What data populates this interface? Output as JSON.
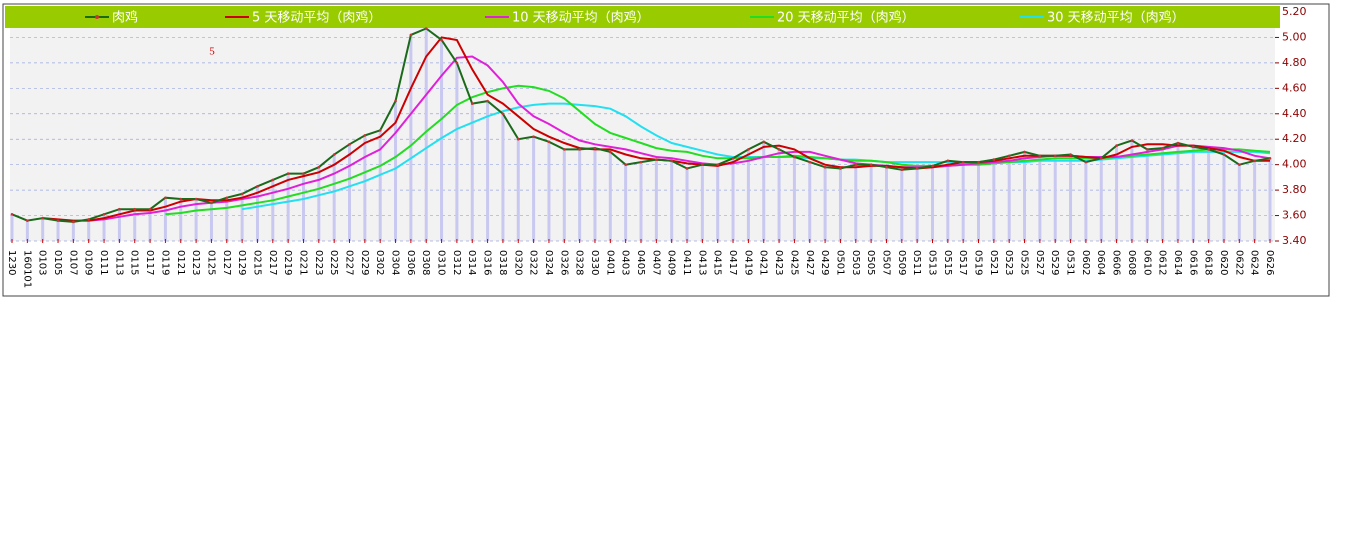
{
  "chart_data": {
    "type": "line",
    "annotation": "5",
    "categories": [
      "1230",
      "160101",
      "0103",
      "0105",
      "0107",
      "0109",
      "0111",
      "0113",
      "0115",
      "0117",
      "0119",
      "0121",
      "0123",
      "0125",
      "0127",
      "0129",
      "0215",
      "0217",
      "0219",
      "0221",
      "0223",
      "0225",
      "0227",
      "0229",
      "0302",
      "0304",
      "0306",
      "0308",
      "0310",
      "0312",
      "0314",
      "0316",
      "0318",
      "0320",
      "0322",
      "0324",
      "0326",
      "0328",
      "0330",
      "0401",
      "0403",
      "0405",
      "0407",
      "0409",
      "0411",
      "0413",
      "0415",
      "0417",
      "0419",
      "0421",
      "0423",
      "0425",
      "0427",
      "0429",
      "0501",
      "0503",
      "0505",
      "0507",
      "0509",
      "0511",
      "0513",
      "0515",
      "0517",
      "0519",
      "0521",
      "0523",
      "0525",
      "0527",
      "0529",
      "0531",
      "0602",
      "0604",
      "0606",
      "0608",
      "0610",
      "0612",
      "0614",
      "0616",
      "0618",
      "0620",
      "0622",
      "0624",
      "0626"
    ],
    "bar_color": "#c8c8f0",
    "series": [
      {
        "name": "肉鸡",
        "color": "#1a6a1a",
        "values": [
          3.61,
          3.56,
          3.58,
          3.56,
          3.55,
          3.57,
          3.61,
          3.65,
          3.65,
          3.65,
          3.74,
          3.73,
          3.73,
          3.7,
          3.74,
          3.77,
          3.83,
          3.88,
          3.93,
          3.93,
          3.98,
          4.08,
          4.16,
          4.23,
          4.27,
          4.5,
          5.02,
          5.07,
          4.98,
          4.8,
          4.48,
          4.5,
          4.4,
          4.2,
          4.22,
          4.18,
          4.12,
          4.12,
          4.13,
          4.1,
          4.0,
          4.02,
          4.04,
          4.03,
          3.97,
          4.0,
          4.0,
          4.05,
          4.12,
          4.18,
          4.12,
          4.06,
          4.02,
          3.98,
          3.97,
          4.0,
          4.0,
          3.98,
          3.96,
          3.97,
          3.99,
          4.03,
          4.02,
          4.02,
          4.04,
          4.07,
          4.1,
          4.07,
          4.07,
          4.08,
          4.02,
          4.05,
          4.15,
          4.19,
          4.12,
          4.13,
          4.17,
          4.14,
          4.12,
          4.08,
          4.0,
          4.03,
          4.05
        ]
      },
      {
        "name": "5 天移动平均（肉鸡）",
        "color": "#cc0000",
        "values": [
          null,
          null,
          3.58,
          3.57,
          3.56,
          3.56,
          3.58,
          3.61,
          3.64,
          3.64,
          3.67,
          3.71,
          3.73,
          3.72,
          3.72,
          3.74,
          3.78,
          3.83,
          3.88,
          3.91,
          3.94,
          4.0,
          4.08,
          4.17,
          4.22,
          4.33,
          4.6,
          4.85,
          5.0,
          4.98,
          4.75,
          4.55,
          4.48,
          4.38,
          4.28,
          4.22,
          4.17,
          4.13,
          4.12,
          4.12,
          4.08,
          4.05,
          4.04,
          4.03,
          4.01,
          4.0,
          3.99,
          4.02,
          4.08,
          4.14,
          4.15,
          4.12,
          4.05,
          4.0,
          3.98,
          3.98,
          3.99,
          3.99,
          3.98,
          3.97,
          3.98,
          4.0,
          4.02,
          4.02,
          4.03,
          4.05,
          4.07,
          4.07,
          4.07,
          4.07,
          4.06,
          4.05,
          4.08,
          4.14,
          4.16,
          4.16,
          4.15,
          4.15,
          4.13,
          4.11,
          4.06,
          4.03,
          4.03
        ]
      },
      {
        "name": "10 天移动平均（肉鸡）",
        "color": "#e020d8",
        "values": [
          null,
          null,
          null,
          null,
          null,
          3.56,
          3.57,
          3.59,
          3.61,
          3.62,
          3.64,
          3.67,
          3.69,
          3.7,
          3.71,
          3.73,
          3.75,
          3.78,
          3.81,
          3.85,
          3.88,
          3.93,
          3.99,
          4.06,
          4.12,
          4.25,
          4.4,
          4.55,
          4.7,
          4.84,
          4.85,
          4.78,
          4.65,
          4.48,
          4.38,
          4.32,
          4.25,
          4.19,
          4.16,
          4.14,
          4.12,
          4.09,
          4.06,
          4.05,
          4.03,
          4.01,
          4.0,
          4.01,
          4.03,
          4.06,
          4.09,
          4.1,
          4.1,
          4.07,
          4.04,
          4.01,
          4.0,
          3.99,
          3.98,
          3.98,
          3.98,
          3.99,
          4.0,
          4.01,
          4.02,
          4.03,
          4.05,
          4.06,
          4.07,
          4.07,
          4.06,
          4.06,
          4.06,
          4.08,
          4.1,
          4.12,
          4.15,
          4.15,
          4.14,
          4.13,
          4.11,
          4.07,
          4.05
        ]
      },
      {
        "name": "20 天移动平均（肉鸡）",
        "color": "#22dd22",
        "values": [
          null,
          null,
          null,
          null,
          null,
          null,
          null,
          null,
          null,
          null,
          3.61,
          3.62,
          3.64,
          3.65,
          3.66,
          3.68,
          3.7,
          3.72,
          3.75,
          3.78,
          3.81,
          3.85,
          3.89,
          3.94,
          3.99,
          4.06,
          4.15,
          4.26,
          4.36,
          4.47,
          4.53,
          4.57,
          4.6,
          4.62,
          4.61,
          4.58,
          4.52,
          4.42,
          4.32,
          4.25,
          4.21,
          4.17,
          4.13,
          4.11,
          4.1,
          4.07,
          4.05,
          4.05,
          4.05,
          4.06,
          4.06,
          4.07,
          4.06,
          4.05,
          4.04,
          4.03,
          4.03,
          4.02,
          4.0,
          3.99,
          3.99,
          3.99,
          4.0,
          4.0,
          4.01,
          4.02,
          4.03,
          4.04,
          4.05,
          4.05,
          4.05,
          4.05,
          4.06,
          4.07,
          4.08,
          4.09,
          4.1,
          4.11,
          4.12,
          4.12,
          4.12,
          4.11,
          4.1
        ]
      },
      {
        "name": "30 天移动平均（肉鸡）",
        "color": "#22e0f0",
        "values": [
          null,
          null,
          null,
          null,
          null,
          null,
          null,
          null,
          null,
          null,
          null,
          null,
          null,
          null,
          null,
          3.65,
          3.67,
          3.69,
          3.71,
          3.73,
          3.76,
          3.79,
          3.83,
          3.87,
          3.92,
          3.97,
          4.05,
          4.13,
          4.21,
          4.28,
          4.33,
          4.38,
          4.42,
          4.45,
          4.47,
          4.48,
          4.48,
          4.47,
          4.46,
          4.44,
          4.38,
          4.3,
          4.23,
          4.17,
          4.14,
          4.11,
          4.08,
          4.06,
          4.06,
          4.06,
          4.06,
          4.06,
          4.05,
          4.05,
          4.04,
          4.04,
          4.03,
          4.02,
          4.02,
          4.02,
          4.02,
          4.02,
          4.02,
          4.02,
          4.02,
          4.02,
          4.02,
          4.03,
          4.03,
          4.03,
          4.03,
          4.04,
          4.05,
          4.06,
          4.07,
          4.08,
          4.09,
          4.1,
          4.1,
          4.1,
          4.1,
          4.1,
          4.09
        ]
      }
    ],
    "ylim": [
      3.4,
      5.2
    ],
    "yticks": [
      {
        "value": 3.4,
        "label": "3.40"
      },
      {
        "value": 3.6,
        "label": "3.60"
      },
      {
        "value": 3.8,
        "label": "3.80"
      },
      {
        "value": 4,
        "label": "4.00"
      },
      {
        "value": 4.2,
        "label": "4.20"
      },
      {
        "value": 4.4,
        "label": "4.40"
      },
      {
        "value": 4.6,
        "label": "4.60"
      },
      {
        "value": 4.8,
        "label": "4.80"
      },
      {
        "value": 5,
        "label": "5.00"
      },
      {
        "value": 5.2,
        "label": "5.20"
      }
    ],
    "grid": true
  }
}
